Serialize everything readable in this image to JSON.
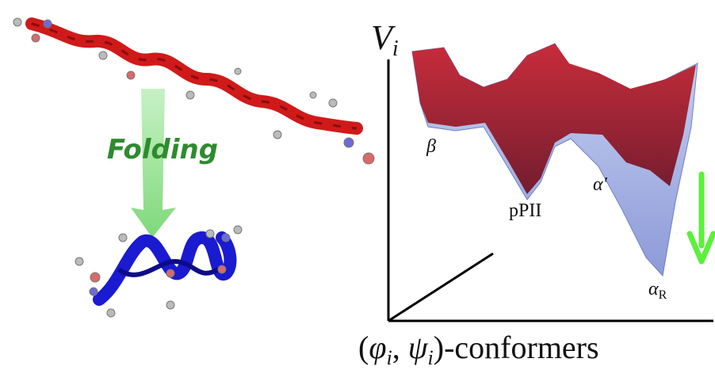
{
  "illustration": {
    "process_label": "Folding",
    "energy_axis": {
      "symbol": "V",
      "subscript": "i"
    },
    "conformer_axis": {
      "open": "(",
      "phi": "φ",
      "phi_sub": "i",
      "sep": ", ",
      "psi": "ψ",
      "psi_sub": "i",
      "close": ")-conformers"
    },
    "minima": {
      "beta": "β",
      "ppii": "pPII",
      "alpha_prime": "α′",
      "alpha_r": {
        "symbol": "α",
        "subscript": "R"
      }
    }
  }
}
